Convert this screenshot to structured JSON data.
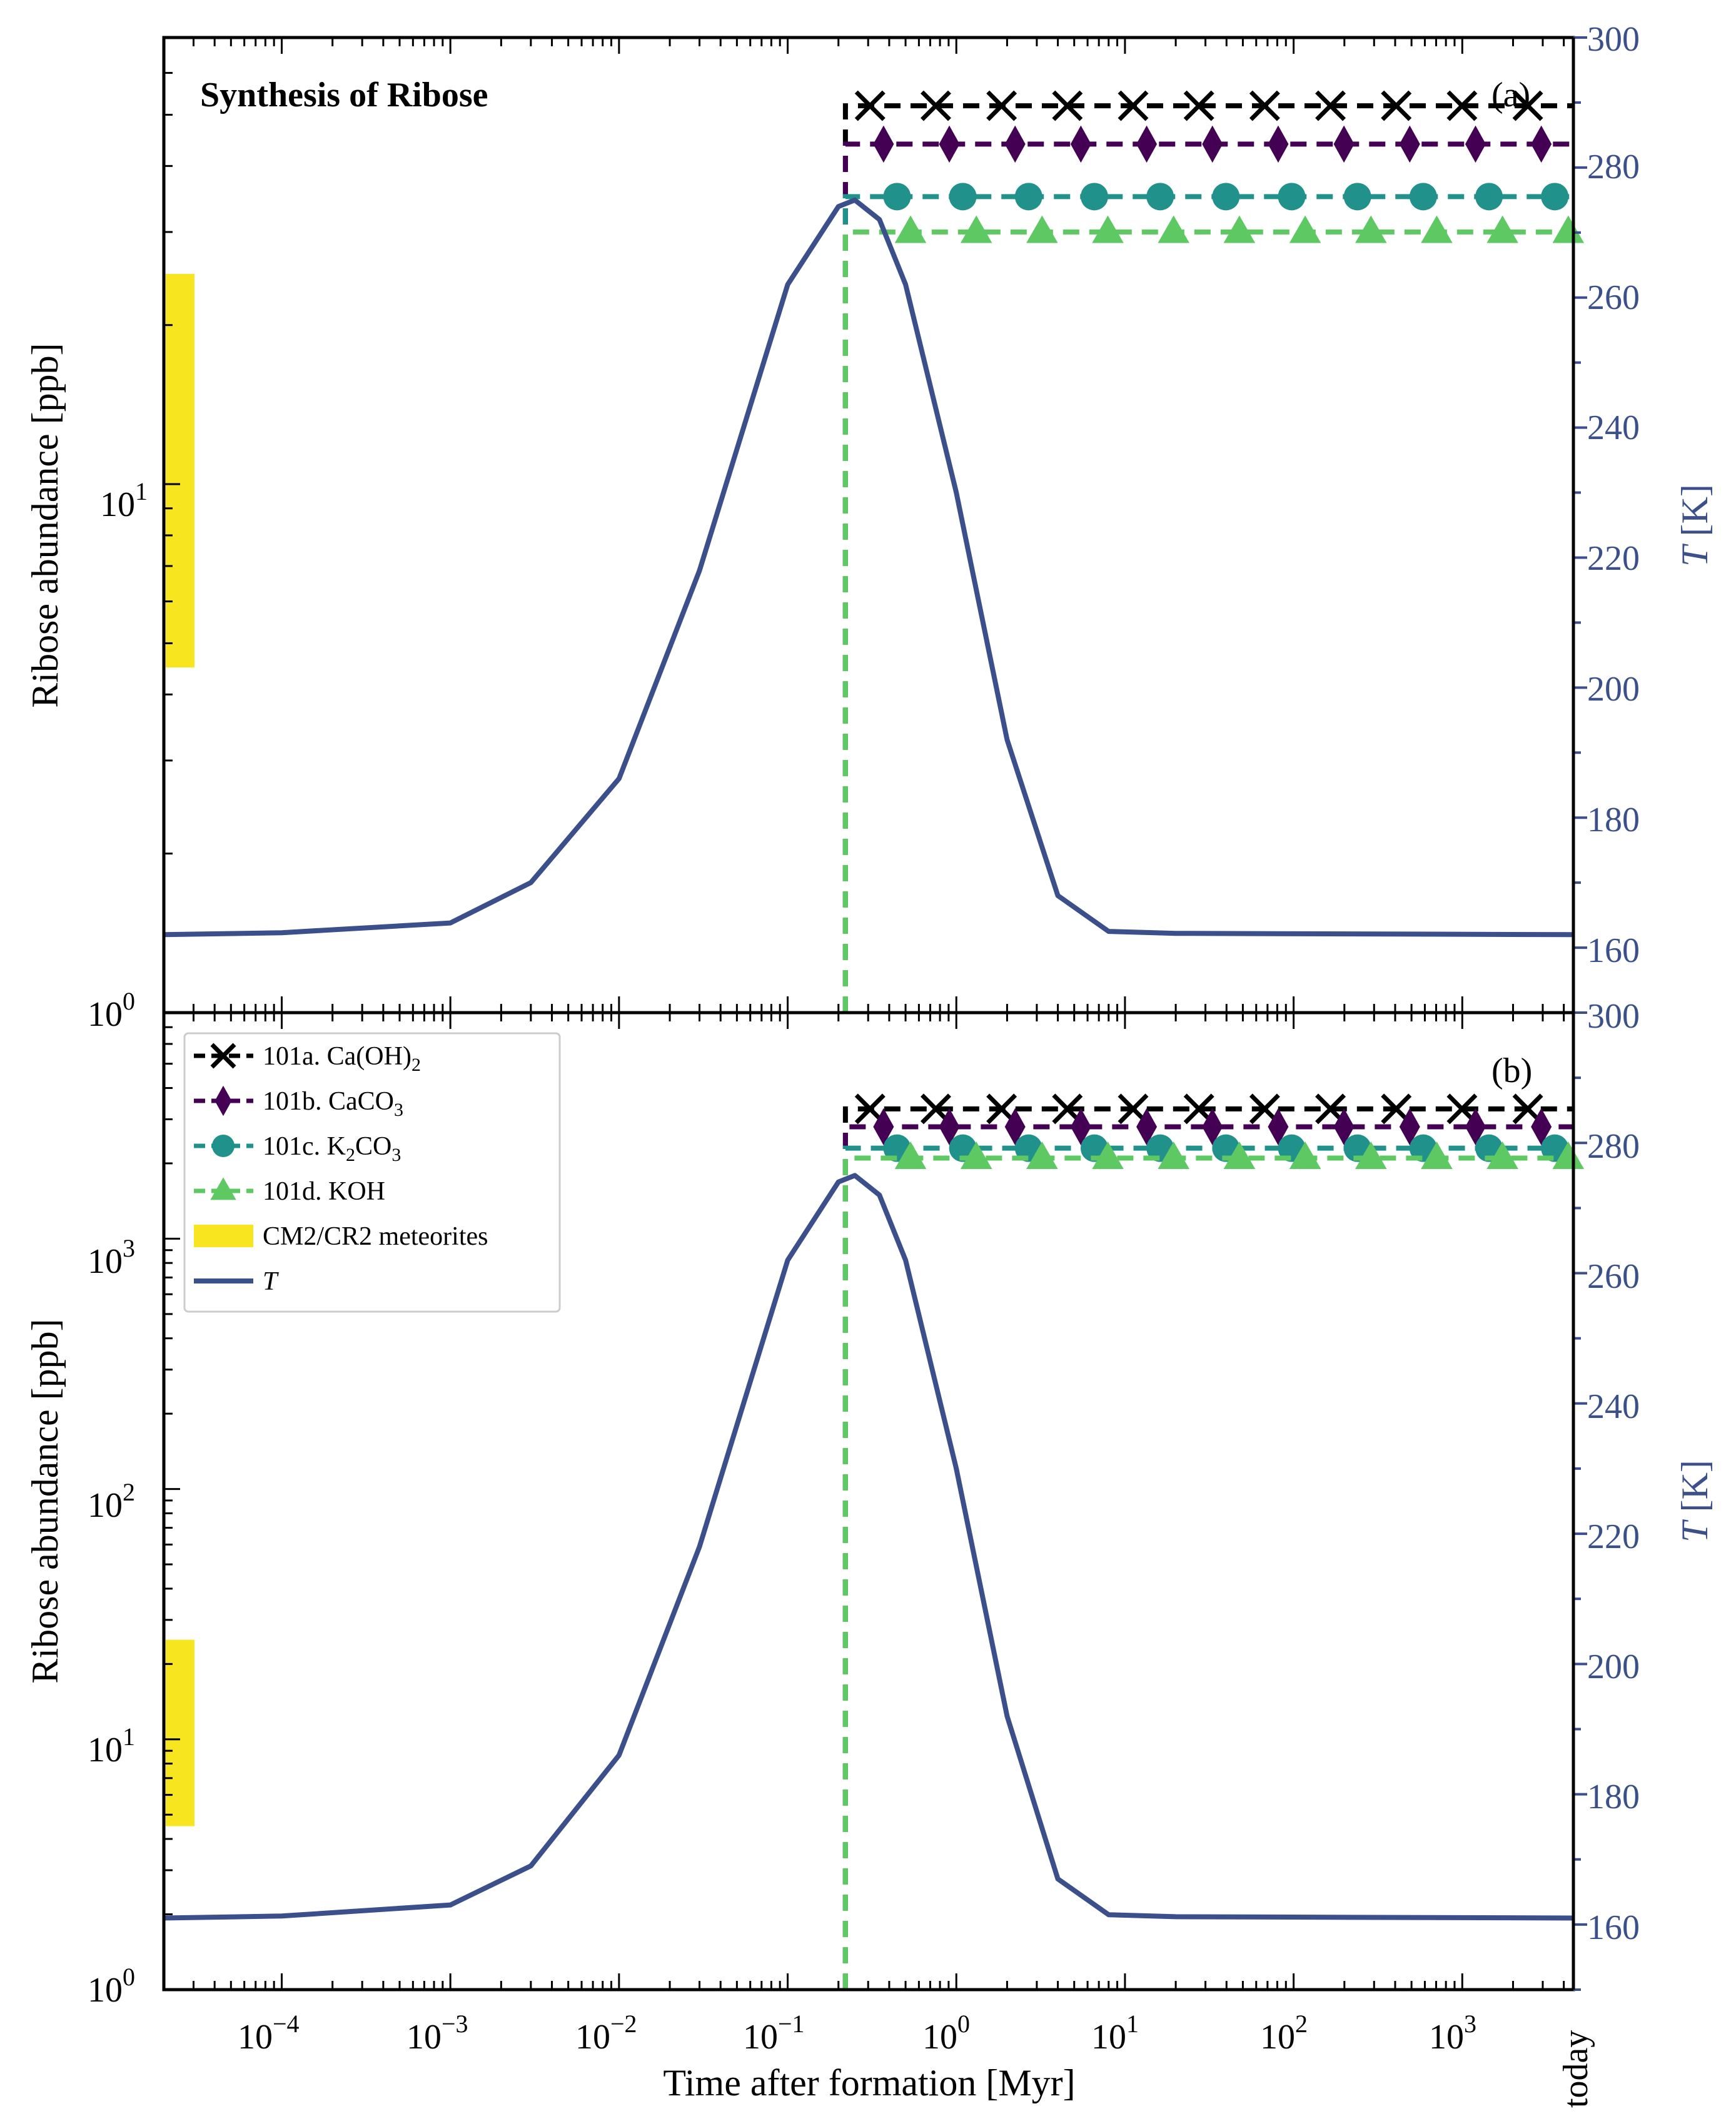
{
  "chart_data": [
    {
      "type": "line",
      "panel": "(a)",
      "title": "Synthesis of Ribose",
      "xlabel": "Time after formation [Myr]",
      "ylabel": "Ribose abundance [ppb]",
      "y2label": "T [K]",
      "xscale": "log",
      "yscale": "log",
      "xlim": [
        2e-05,
        4560
      ],
      "ylim": [
        1,
        70
      ],
      "y2lim": [
        150,
        300
      ],
      "x_ticks": [
        "10^-4",
        "10^-3",
        "10^-2",
        "10^-1",
        "10^0",
        "10^1",
        "10^2",
        "10^3",
        "today"
      ],
      "y_ticks": [
        "10^0",
        "10^1"
      ],
      "y2_ticks": [
        "160",
        "180",
        "200",
        "220",
        "240",
        "260",
        "280",
        "300"
      ],
      "onset_time_myr": 0.22,
      "series": [
        {
          "name": "101a. Ca(OH)2",
          "marker": "x",
          "color": "#000000",
          "plateau_ppb": 52
        },
        {
          "name": "101b. CaCO3",
          "marker": "diamond",
          "color": "#440154",
          "plateau_ppb": 44
        },
        {
          "name": "101c. K2CO3",
          "marker": "circle",
          "color": "#21918c",
          "plateau_ppb": 35
        },
        {
          "name": "101d. KOH",
          "marker": "triangle",
          "color": "#5ec962",
          "plateau_ppb": 30
        }
      ],
      "temperature": {
        "name": "T",
        "color": "#3b4f8a",
        "baseline_K": 162,
        "peak_K": 275,
        "peak_time_myr": 0.25,
        "points": [
          [
            2e-05,
            162
          ],
          [
            0.0001,
            162.3
          ],
          [
            0.001,
            163.8
          ],
          [
            0.003,
            170
          ],
          [
            0.01,
            186
          ],
          [
            0.03,
            218
          ],
          [
            0.1,
            262
          ],
          [
            0.2,
            274
          ],
          [
            0.25,
            275
          ],
          [
            0.35,
            272
          ],
          [
            0.5,
            262
          ],
          [
            1,
            230
          ],
          [
            2,
            192
          ],
          [
            4,
            168
          ],
          [
            8,
            162.5
          ],
          [
            20,
            162.2
          ],
          [
            4560,
            162
          ]
        ]
      },
      "meteorite_range": {
        "name": "CM2/CR2 meteorites",
        "color": "#f7e51f",
        "min_ppb": 4.5,
        "max_ppb": 25
      }
    },
    {
      "type": "line",
      "panel": "(b)",
      "xlabel": "Time after formation [Myr]",
      "ylabel": "Ribose abundance [ppb]",
      "y2label": "T [K]",
      "xscale": "log",
      "yscale": "log",
      "xlim": [
        2e-05,
        4560
      ],
      "ylim": [
        1,
        8000
      ],
      "y2lim": [
        150,
        300
      ],
      "x_ticks": [
        "10^-4",
        "10^-3",
        "10^-2",
        "10^-1",
        "10^0",
        "10^1",
        "10^2",
        "10^3",
        "today"
      ],
      "y_ticks": [
        "10^0",
        "10^1",
        "10^2",
        "10^3"
      ],
      "y2_ticks": [
        "160",
        "180",
        "200",
        "220",
        "240",
        "260",
        "280",
        "300"
      ],
      "onset_time_myr": 0.22,
      "series": [
        {
          "name": "101a. Ca(OH)2",
          "marker": "x",
          "color": "#000000",
          "plateau_ppb": 3300
        },
        {
          "name": "101b. CaCO3",
          "marker": "diamond",
          "color": "#440154",
          "plateau_ppb": 2800
        },
        {
          "name": "101c. K2CO3",
          "marker": "circle",
          "color": "#21918c",
          "plateau_ppb": 2300
        },
        {
          "name": "101d. KOH",
          "marker": "triangle",
          "color": "#5ec962",
          "plateau_ppb": 2100
        }
      ],
      "temperature": {
        "name": "T",
        "color": "#3b4f8a",
        "baseline_K": 161,
        "peak_K": 275,
        "peak_time_myr": 0.25,
        "points": [
          [
            2e-05,
            161
          ],
          [
            0.0001,
            161.3
          ],
          [
            0.001,
            163
          ],
          [
            0.003,
            169
          ],
          [
            0.01,
            186
          ],
          [
            0.03,
            218
          ],
          [
            0.1,
            262
          ],
          [
            0.2,
            274
          ],
          [
            0.25,
            275
          ],
          [
            0.35,
            272
          ],
          [
            0.5,
            262
          ],
          [
            1,
            230
          ],
          [
            2,
            192
          ],
          [
            4,
            167
          ],
          [
            8,
            161.5
          ],
          [
            20,
            161.2
          ],
          [
            4560,
            161
          ]
        ]
      },
      "meteorite_range": {
        "name": "CM2/CR2 meteorites",
        "color": "#f7e51f",
        "min_ppb": 4.5,
        "max_ppb": 25
      }
    }
  ],
  "legend": {
    "entries": [
      {
        "key": "a",
        "prefix": "101a. Ca(OH)",
        "sub": "2",
        "suffix": "",
        "marker": "x",
        "color": "#000000"
      },
      {
        "key": "b",
        "prefix": "101b. CaCO",
        "sub": "3",
        "suffix": "",
        "marker": "diamond",
        "color": "#440154"
      },
      {
        "key": "c",
        "prefix": "101c. K",
        "sub": "2",
        "suffix": "CO",
        "sub2": "3",
        "marker": "circle",
        "color": "#21918c"
      },
      {
        "key": "d",
        "prefix": "101d. KOH",
        "sub": "",
        "suffix": "",
        "marker": "triangle",
        "color": "#5ec962"
      },
      {
        "key": "m",
        "prefix": "CM2/CR2 meteorites",
        "marker": "patch",
        "color": "#f7e51f"
      },
      {
        "key": "t",
        "prefix": "T",
        "marker": "line",
        "color": "#3b4f8a"
      }
    ]
  }
}
